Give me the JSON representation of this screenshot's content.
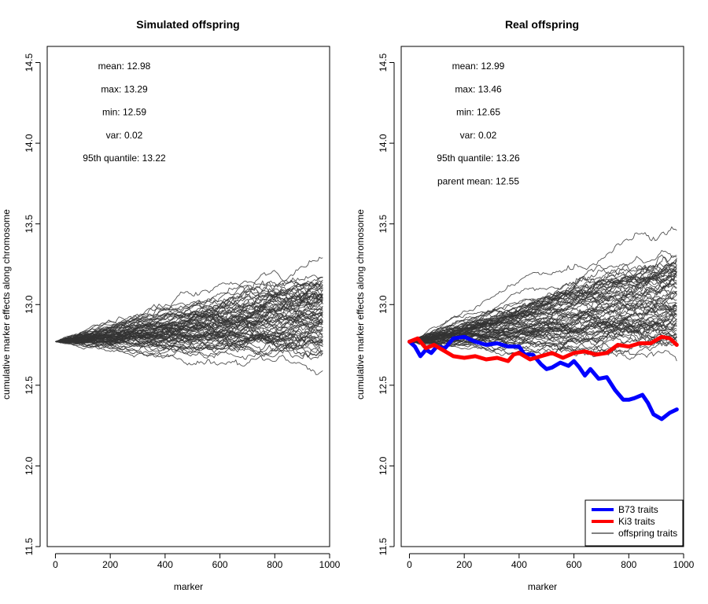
{
  "chart_data": [
    {
      "type": "line",
      "title": "Simulated offspring",
      "xlabel": "marker",
      "ylabel": "cumulative marker effects along chromosome",
      "xlim": [
        -30,
        1000
      ],
      "ylim": [
        11.5,
        14.6
      ],
      "xticks": [
        "0",
        "200",
        "400",
        "600",
        "800",
        "1000"
      ],
      "yticks": [
        "11.5",
        "12.0",
        "12.5",
        "13.0",
        "13.5",
        "14.0",
        "14.5"
      ],
      "x_range": [
        0,
        975
      ],
      "start_value": 12.77,
      "n_offspring_lines": 70,
      "offspring_color": "#333333",
      "offspring_end_range": [
        12.59,
        13.29
      ],
      "annotations": [
        "mean: 12.98",
        "max: 13.29",
        "min: 12.59",
        "var: 0.02",
        "95th quantile: 13.22"
      ],
      "series": []
    },
    {
      "type": "line",
      "title": "Real offspring",
      "xlabel": "marker",
      "ylabel": "cumulative marker effects along chromosome",
      "xlim": [
        -30,
        1000
      ],
      "ylim": [
        11.5,
        14.6
      ],
      "xticks": [
        "0",
        "200",
        "400",
        "600",
        "800",
        "1000"
      ],
      "yticks": [
        "11.5",
        "12.0",
        "12.5",
        "13.0",
        "13.5",
        "14.0",
        "14.5"
      ],
      "x_range": [
        0,
        975
      ],
      "start_value": 12.77,
      "n_offspring_lines": 70,
      "offspring_color": "#333333",
      "offspring_end_range": [
        12.65,
        13.46
      ],
      "annotations": [
        "mean: 12.99",
        "max: 13.46",
        "min: 12.65",
        "var: 0.02",
        "95th quantile: 13.26",
        "parent mean: 12.55"
      ],
      "series": [
        {
          "name": "B73 traits",
          "color": "#0000ff",
          "x": [
            0,
            20,
            40,
            60,
            80,
            100,
            130,
            160,
            200,
            240,
            280,
            320,
            360,
            400,
            420,
            450,
            480,
            500,
            520,
            550,
            580,
            600,
            620,
            640,
            660,
            690,
            720,
            750,
            780,
            800,
            820,
            850,
            870,
            890,
            920,
            950,
            975
          ],
          "values": [
            12.77,
            12.74,
            12.68,
            12.72,
            12.7,
            12.74,
            12.73,
            12.79,
            12.8,
            12.77,
            12.75,
            12.76,
            12.74,
            12.74,
            12.69,
            12.69,
            12.63,
            12.6,
            12.61,
            12.64,
            12.62,
            12.65,
            12.61,
            12.56,
            12.6,
            12.54,
            12.55,
            12.47,
            12.41,
            12.41,
            12.42,
            12.44,
            12.39,
            12.32,
            12.29,
            12.33,
            12.35
          ]
        },
        {
          "name": "Ki3 traits",
          "color": "#ff0000",
          "x": [
            0,
            30,
            60,
            90,
            120,
            160,
            200,
            240,
            280,
            320,
            360,
            380,
            400,
            440,
            480,
            520,
            560,
            600,
            640,
            680,
            720,
            760,
            800,
            840,
            880,
            920,
            950,
            975
          ],
          "values": [
            12.77,
            12.79,
            12.73,
            12.75,
            12.72,
            12.68,
            12.67,
            12.68,
            12.66,
            12.67,
            12.65,
            12.69,
            12.7,
            12.66,
            12.68,
            12.7,
            12.67,
            12.7,
            12.71,
            12.69,
            12.7,
            12.75,
            12.74,
            12.76,
            12.76,
            12.8,
            12.79,
            12.75
          ]
        }
      ],
      "legend": {
        "placement": "bottom-right",
        "entries": [
          "B73 traits",
          "Ki3 traits",
          "offspring traits"
        ]
      }
    }
  ]
}
